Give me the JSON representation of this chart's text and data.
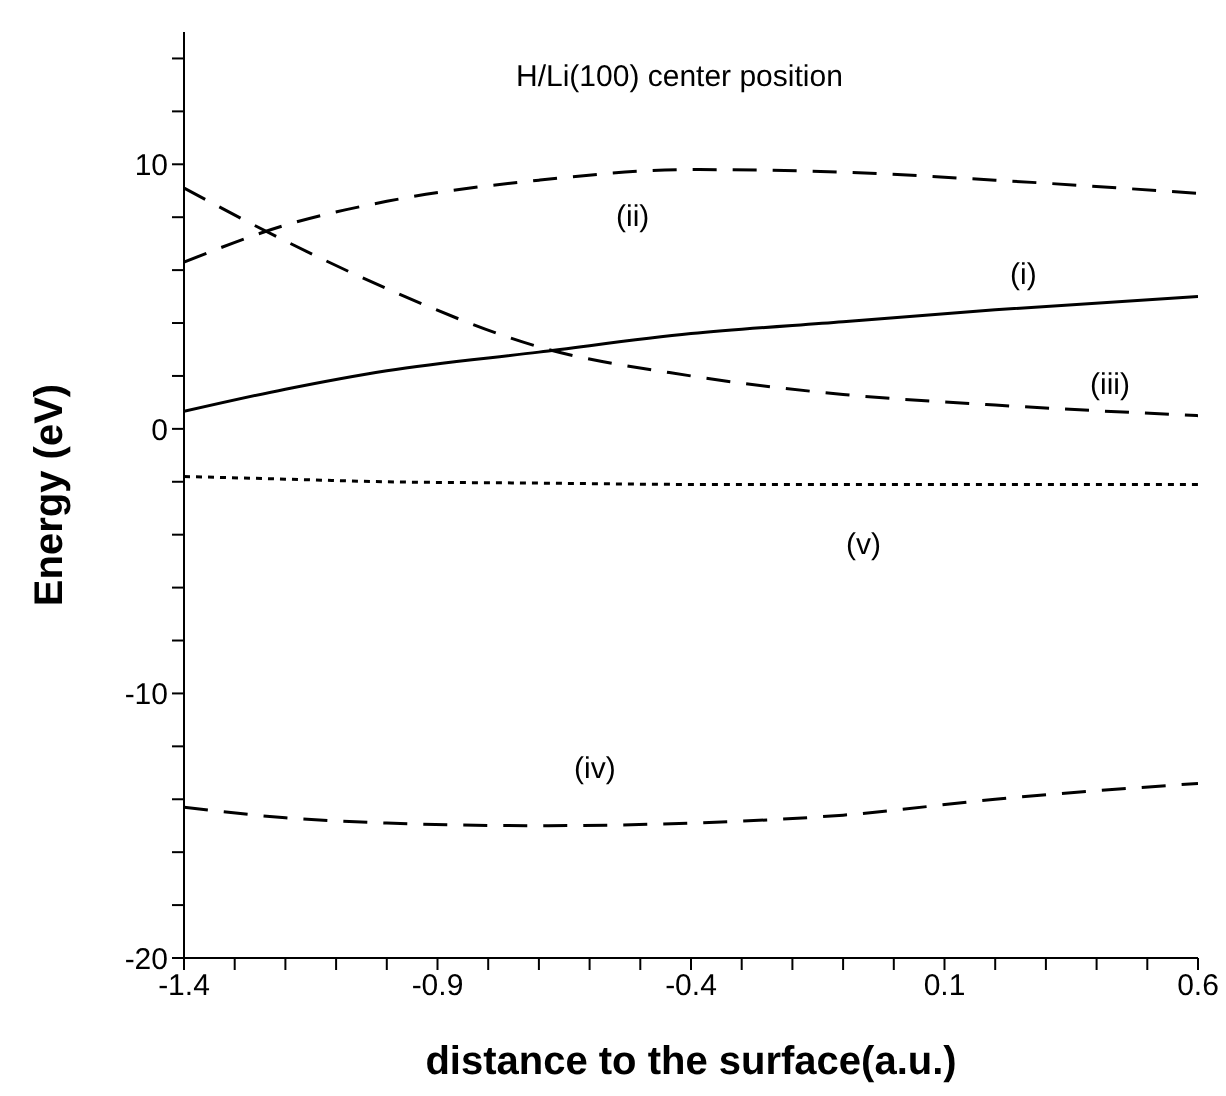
{
  "chart_data": {
    "type": "line",
    "title": "H/Li(100) center position",
    "xlabel": "distance to the surface(a.u.)",
    "ylabel": "Energy (eV)",
    "x": [
      -1.4,
      -1.2,
      -1.0,
      -0.7,
      -0.4,
      -0.1,
      0.2,
      0.6
    ],
    "series": [
      {
        "color": "#000000",
        "line_style": "solid",
        "values": [
          0.66,
          1.5,
          2.2,
          2.9,
          3.6,
          4.05,
          4.5,
          5.0
        ]
      },
      {
        "color": "#000000",
        "line_style": "dashed",
        "values": [
          6.3,
          7.7,
          8.6,
          9.4,
          9.8,
          9.7,
          9.4,
          8.9
        ]
      },
      {
        "color": "#000000",
        "line_style": "dashed",
        "values": [
          9.1,
          7.1,
          5.3,
          3.1,
          2.0,
          1.3,
          0.9,
          0.5
        ]
      },
      {
        "color": "#000000",
        "line_style": "dashed",
        "values": [
          -14.3,
          -14.7,
          -14.9,
          -15.0,
          -14.9,
          -14.6,
          -14.0,
          -13.4
        ]
      },
      {
        "color": "#000000",
        "line_style": "dotted",
        "values": [
          -1.8,
          -1.9,
          -2.0,
          -2.05,
          -2.1,
          -2.1,
          -2.1,
          -2.1
        ]
      }
    ],
    "xlim": [
      -1.4,
      0.6
    ],
    "xticks": [
      -1.4,
      {
        "value": -1.3,
        "label": null
      },
      {
        "value": -1.2,
        "label": null
      },
      {
        "value": -1.1,
        "label": null
      },
      {
        "value": -1.0,
        "label": null
      },
      -0.9,
      {
        "value": -0.8,
        "label": null
      },
      {
        "value": -0.7,
        "label": null
      },
      {
        "value": -0.6,
        "label": null
      },
      {
        "value": -0.5,
        "label": null
      },
      -0.4,
      {
        "value": -0.3,
        "label": null
      },
      {
        "value": -0.2,
        "label": null
      },
      {
        "value": -0.1,
        "label": null
      },
      {
        "value": 0,
        "label": null
      },
      0.1,
      {
        "value": 0.2,
        "label": null
      },
      {
        "value": 0.3,
        "label": null
      },
      {
        "value": 0.4,
        "label": null
      },
      {
        "value": 0.5,
        "label": null
      },
      0.6
    ],
    "ylim": [
      -20,
      15
    ],
    "yticks": [
      -20,
      {
        "value": -18,
        "label": null
      },
      {
        "value": -16,
        "label": null
      },
      {
        "value": -14,
        "label": null
      },
      {
        "value": -12,
        "label": null
      },
      -10,
      {
        "value": -8,
        "label": null
      },
      {
        "value": -6,
        "label": null
      },
      {
        "value": -4,
        "label": null
      },
      {
        "value": -2,
        "label": null
      },
      0,
      {
        "value": 2,
        "label": null
      },
      {
        "value": 4,
        "label": null
      },
      {
        "value": 6,
        "label": null
      },
      {
        "value": 8,
        "label": null
      },
      10,
      {
        "value": 12,
        "label": null
      },
      {
        "value": 14,
        "label": null
      }
    ],
    "grid": false,
    "legend": false,
    "marker": "none",
    "annotations": [
      "(i)",
      "(ii)",
      "(iii)",
      "(iv)",
      "(v)"
    ]
  }
}
